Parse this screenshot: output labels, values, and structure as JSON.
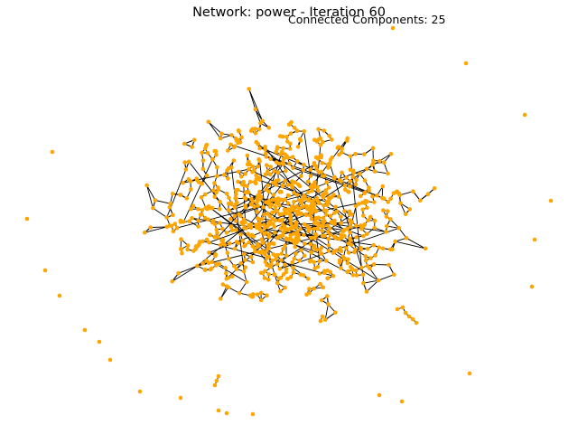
{
  "figure": {
    "title": "Network: power - Iteration 60",
    "annotation": "Connected Components: 25"
  },
  "colors": {
    "node": "#FFA500",
    "edge": "#000000",
    "background": "#ffffff"
  },
  "network": {
    "name": "power",
    "iteration": 60,
    "connected_components": 25
  }
}
